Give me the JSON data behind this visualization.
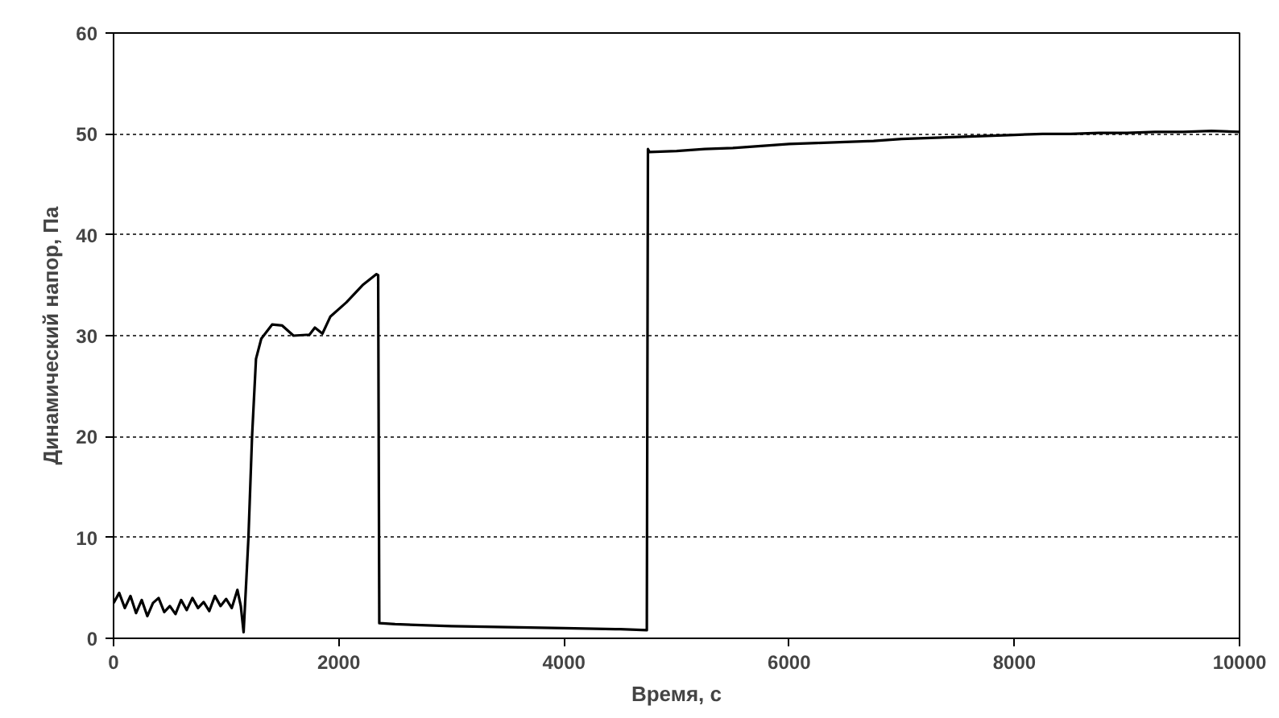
{
  "chart_data": {
    "type": "line",
    "xlabel": "Время, с",
    "ylabel": "Динамический напор, Па",
    "xlim": [
      0,
      10000
    ],
    "ylim": [
      0,
      60
    ],
    "xticks": [
      0,
      2000,
      4000,
      6000,
      8000,
      10000
    ],
    "yticks": [
      0,
      10,
      20,
      30,
      40,
      50,
      60
    ],
    "grid": "y",
    "series": [
      {
        "color": "#000000",
        "x": [
          0,
          50,
          100,
          150,
          200,
          250,
          300,
          350,
          400,
          450,
          500,
          550,
          600,
          650,
          700,
          750,
          800,
          850,
          900,
          950,
          1000,
          1050,
          1100,
          1130,
          1155,
          1180,
          1198,
          1230,
          1265,
          1312,
          1408,
          1498,
          1598,
          1740,
          1788,
          1855,
          1926,
          2068,
          2211,
          2335,
          2350,
          2360,
          2500,
          3000,
          3500,
          4000,
          4500,
          4736,
          4746,
          4760,
          5000,
          5250,
          5500,
          5750,
          6000,
          6250,
          6500,
          6750,
          7000,
          7250,
          7500,
          7750,
          8000,
          8250,
          8500,
          8750,
          9000,
          9250,
          9500,
          9750,
          10000
        ],
        "values": [
          3.5,
          4.5,
          3.0,
          4.2,
          2.5,
          3.8,
          2.2,
          3.5,
          4.0,
          2.6,
          3.2,
          2.4,
          3.8,
          2.8,
          4.0,
          3.0,
          3.6,
          2.7,
          4.2,
          3.2,
          3.9,
          3.0,
          4.8,
          3.2,
          0.6,
          6.0,
          10,
          20,
          27.7,
          29.7,
          31.1,
          31,
          30,
          30.1,
          30.8,
          30.2,
          31.9,
          33.3,
          35,
          36.1,
          36,
          1.5,
          1.4,
          1.2,
          1.1,
          1.0,
          0.9,
          0.8,
          48.5,
          48.2,
          48.3,
          48.5,
          48.6,
          48.8,
          49.0,
          49.1,
          49.2,
          49.3,
          49.5,
          49.6,
          49.7,
          49.8,
          49.9,
          50.0,
          50.0,
          50.1,
          50.1,
          50.2,
          50.2,
          50.3,
          50.2
        ]
      }
    ]
  }
}
